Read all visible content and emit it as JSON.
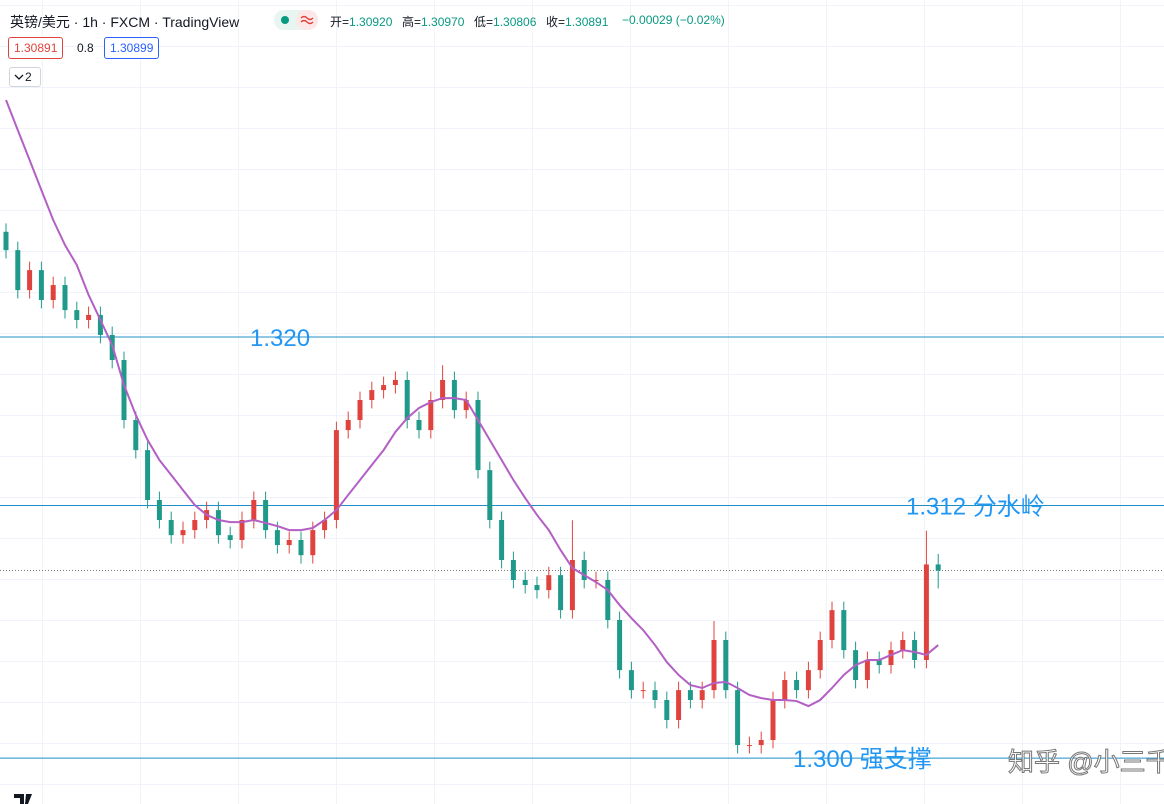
{
  "header": {
    "symbol": "英镑/美元 · 1h · FXCM · TradingView",
    "quote": [
      {
        "label": "开=",
        "value": "1.30920"
      },
      {
        "label": "高=",
        "value": "1.30970"
      },
      {
        "label": "低=",
        "value": "1.30806"
      },
      {
        "label": "收=",
        "value": "1.30891"
      }
    ],
    "change": "−0.00029 (−0.02%)",
    "bid": "1.30891",
    "spread": "0.8",
    "ask": "1.30899",
    "collapsed_count": "2",
    "watermark": "知乎 @小三千"
  },
  "chart_data": {
    "type": "candlestick",
    "up_color": "#e0433d",
    "down_color": "#1f9a8a",
    "ma_color": "#b35fc4",
    "hline_color": "#1f8fc8",
    "hline_label_color": "#2196f3",
    "ylim": [
      1.29782,
      1.33601
    ],
    "candles": [
      [
        1.325,
        1.3254,
        1.32373,
        1.32413
      ],
      [
        1.32413,
        1.32453,
        1.32183,
        1.32223
      ],
      [
        1.32223,
        1.32358,
        1.32183,
        1.32318
      ],
      [
        1.32318,
        1.32358,
        1.32136,
        1.32176
      ],
      [
        1.32176,
        1.32287,
        1.32136,
        1.32247
      ],
      [
        1.32247,
        1.32287,
        1.32088,
        1.32128
      ],
      [
        1.32128,
        1.32168,
        1.32041,
        1.32081
      ],
      [
        1.32081,
        1.32145,
        1.32041,
        1.32105
      ],
      [
        1.32105,
        1.32145,
        1.3197,
        1.3201
      ],
      [
        1.3201,
        1.3205,
        1.31851,
        1.31891
      ],
      [
        1.31891,
        1.31931,
        1.31566,
        1.31606
      ],
      [
        1.31606,
        1.31646,
        1.31423,
        1.31463
      ],
      [
        1.31463,
        1.31503,
        1.31186,
        1.31226
      ],
      [
        1.31226,
        1.31266,
        1.31091,
        1.31131
      ],
      [
        1.31131,
        1.31171,
        1.31019,
        1.31059
      ],
      [
        1.31059,
        1.31123,
        1.31019,
        1.31083
      ],
      [
        1.31083,
        1.31171,
        1.31043,
        1.31131
      ],
      [
        1.31131,
        1.31218,
        1.31091,
        1.31178
      ],
      [
        1.31178,
        1.31218,
        1.31019,
        1.31059
      ],
      [
        1.31059,
        1.31099,
        1.30996,
        1.31036
      ],
      [
        1.31036,
        1.31171,
        1.30996,
        1.31131
      ],
      [
        1.31131,
        1.31266,
        1.31091,
        1.31226
      ],
      [
        1.31226,
        1.31266,
        1.31043,
        1.31083
      ],
      [
        1.31083,
        1.31123,
        1.30972,
        1.31012
      ],
      [
        1.31012,
        1.31076,
        1.30972,
        1.31036
      ],
      [
        1.31036,
        1.31076,
        1.30924,
        1.30964
      ],
      [
        1.30964,
        1.31123,
        1.30924,
        1.31083
      ],
      [
        1.31083,
        1.31171,
        1.31043,
        1.31131
      ],
      [
        1.31131,
        1.31598,
        1.31091,
        1.31558
      ],
      [
        1.31558,
        1.31646,
        1.31518,
        1.31606
      ],
      [
        1.31606,
        1.31741,
        1.31566,
        1.31701
      ],
      [
        1.31701,
        1.31788,
        1.31661,
        1.31748
      ],
      [
        1.31748,
        1.31812,
        1.31708,
        1.31772
      ],
      [
        1.31772,
        1.31836,
        1.31732,
        1.31796
      ],
      [
        1.31796,
        1.31836,
        1.31566,
        1.31606
      ],
      [
        1.31606,
        1.31646,
        1.31518,
        1.31558
      ],
      [
        1.31558,
        1.31741,
        1.31518,
        1.31701
      ],
      [
        1.31701,
        1.31866,
        1.31661,
        1.31796
      ],
      [
        1.31796,
        1.31836,
        1.31613,
        1.31653
      ],
      [
        1.31653,
        1.31741,
        1.31613,
        1.31701
      ],
      [
        1.31701,
        1.31741,
        1.31328,
        1.31368
      ],
      [
        1.31368,
        1.31408,
        1.31091,
        1.31131
      ],
      [
        1.31131,
        1.31171,
        1.30901,
        1.30941
      ],
      [
        1.30941,
        1.30981,
        1.30806,
        1.30846
      ],
      [
        1.30846,
        1.30886,
        1.30782,
        1.30822
      ],
      [
        1.30822,
        1.30862,
        1.30758,
        1.30798
      ],
      [
        1.30798,
        1.30909,
        1.30758,
        1.30869
      ],
      [
        1.30869,
        1.30909,
        1.30663,
        1.30703
      ],
      [
        1.30703,
        1.3113,
        1.30663,
        1.30941
      ],
      [
        1.30941,
        1.30981,
        1.30806,
        1.30846
      ],
      [
        1.30846,
        1.30886,
        1.30806,
        1.30846
      ],
      [
        1.30846,
        1.30886,
        1.30616,
        1.30656
      ],
      [
        1.30656,
        1.30696,
        1.30378,
        1.30418
      ],
      [
        1.30418,
        1.30458,
        1.30283,
        1.30323
      ],
      [
        1.30323,
        1.30363,
        1.30283,
        1.30323
      ],
      [
        1.30323,
        1.30363,
        1.30236,
        1.30276
      ],
      [
        1.30276,
        1.30316,
        1.30141,
        1.30181
      ],
      [
        1.30181,
        1.30363,
        1.30141,
        1.30323
      ],
      [
        1.30323,
        1.30363,
        1.30236,
        1.30276
      ],
      [
        1.30276,
        1.30363,
        1.30236,
        1.30323
      ],
      [
        1.30323,
        1.30651,
        1.30283,
        1.30561
      ],
      [
        1.30561,
        1.30601,
        1.30283,
        1.30323
      ],
      [
        1.30323,
        1.30363,
        1.30022,
        1.30062
      ],
      [
        1.30062,
        1.30102,
        1.30022,
        1.30062
      ],
      [
        1.30062,
        1.30126,
        1.30022,
        1.30086
      ],
      [
        1.30086,
        1.30316,
        1.30046,
        1.30276
      ],
      [
        1.30276,
        1.30411,
        1.30236,
        1.30371
      ],
      [
        1.30371,
        1.30411,
        1.30283,
        1.30323
      ],
      [
        1.30323,
        1.30458,
        1.30283,
        1.30418
      ],
      [
        1.30418,
        1.30601,
        1.30378,
        1.30561
      ],
      [
        1.30561,
        1.30743,
        1.30521,
        1.30703
      ],
      [
        1.30703,
        1.30743,
        1.30473,
        1.30513
      ],
      [
        1.30513,
        1.30553,
        1.30331,
        1.30371
      ],
      [
        1.30371,
        1.30506,
        1.30331,
        1.30466
      ],
      [
        1.30466,
        1.30506,
        1.30402,
        1.30442
      ],
      [
        1.30442,
        1.30553,
        1.30402,
        1.30513
      ],
      [
        1.30513,
        1.30601,
        1.30473,
        1.30561
      ],
      [
        1.30561,
        1.30601,
        1.30426,
        1.30466
      ],
      [
        1.30466,
        1.3108,
        1.30426,
        1.3092
      ],
      [
        1.3092,
        1.3097,
        1.30806,
        1.30891
      ]
    ],
    "ma_values": [
      1.33126,
      1.32983,
      1.32841,
      1.32698,
      1.32556,
      1.32437,
      1.32342,
      1.322,
      1.32081,
      1.31962,
      1.31772,
      1.3163,
      1.31511,
      1.31416,
      1.31345,
      1.31273,
      1.31202,
      1.31155,
      1.31131,
      1.31121,
      1.31121,
      1.31131,
      1.31117,
      1.31102,
      1.31083,
      1.31083,
      1.31093,
      1.31131,
      1.31178,
      1.3125,
      1.31321,
      1.31392,
      1.31463,
      1.31549,
      1.31615,
      1.31663,
      1.31691,
      1.3171,
      1.3171,
      1.31701,
      1.31606,
      1.31511,
      1.31416,
      1.31321,
      1.31235,
      1.31155,
      1.31083,
      1.30988,
      1.30903,
      1.30869,
      1.30836,
      1.30798,
      1.30727,
      1.30665,
      1.30608,
      1.30537,
      1.30456,
      1.30395,
      1.30347,
      1.30333,
      1.30357,
      1.30362,
      1.30333,
      1.303,
      1.30285,
      1.30276,
      1.30276,
      1.30271,
      1.30247,
      1.30276,
      1.30333,
      1.30395,
      1.30442,
      1.30466,
      1.30466,
      1.3049,
      1.30513,
      1.30504,
      1.3049,
      1.30537
    ],
    "hlines": [
      {
        "value": 1.32,
        "label": "1.320"
      },
      {
        "value": 1.312,
        "label": "1.312 分水岭"
      },
      {
        "value": 1.3,
        "label": "1.300 强支撑"
      }
    ]
  }
}
